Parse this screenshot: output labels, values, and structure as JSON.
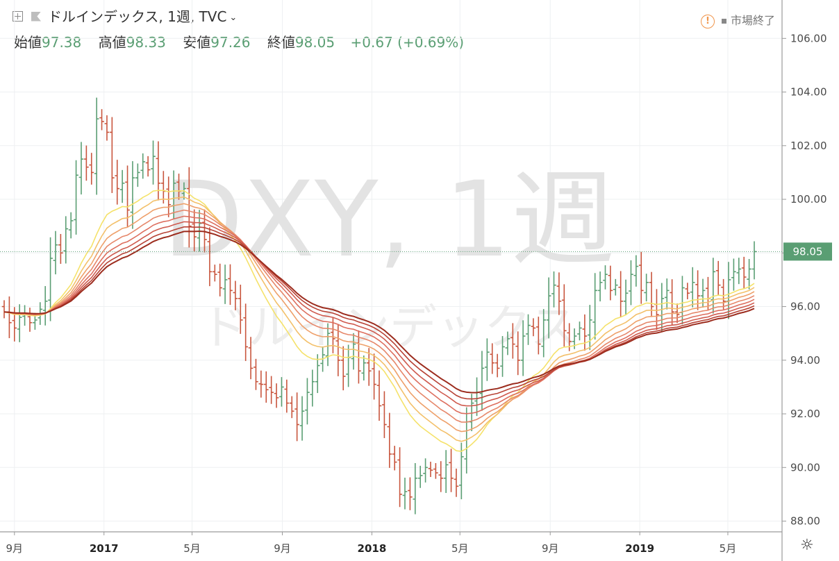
{
  "header": {
    "title": "ドルインデックス, 1週, TVC",
    "status": "市場終了"
  },
  "ohlc": {
    "open_label": "始値",
    "open": "97.38",
    "high_label": "高値",
    "high": "98.33",
    "low_label": "安値",
    "low": "97.26",
    "close_label": "終値",
    "close": "98.05",
    "change": "+0.67 (+0.69%)"
  },
  "watermark": {
    "symbol": "DXY, 1週",
    "name": "ドルインデックス"
  },
  "colors": {
    "up": "#5a9e73",
    "down": "#c8553d",
    "price_line": "#5a9e73",
    "ribbon": [
      "#f5e26a",
      "#f3c06a",
      "#eea06a",
      "#e6876a",
      "#dd6e5e",
      "#cf5a4e",
      "#b74235",
      "#9c2c1e"
    ]
  },
  "chart_data": {
    "type": "ohlc",
    "title": "ドルインデックス, 1週, TVC",
    "x_ticks": [
      "9月",
      "2017",
      "5月",
      "9月",
      "2018",
      "5月",
      "9月",
      "2019",
      "5月"
    ],
    "x_tick_dates": [
      "2016-09-01",
      "2017-01-01",
      "2017-05-01",
      "2017-09-01",
      "2018-01-01",
      "2018-05-01",
      "2018-09-01",
      "2019-01-01",
      "2019-05-01"
    ],
    "y_ticks": [
      "88.00",
      "90.00",
      "92.00",
      "94.00",
      "96.00",
      "98.00",
      "100.00",
      "102.00",
      "104.00",
      "106.00"
    ],
    "ylim": [
      87.6,
      106.5
    ],
    "last_price": "98.05",
    "grid": true,
    "weekly_close": [
      95.8,
      95.4,
      95.2,
      95.6,
      95.7,
      95.4,
      95.5,
      95.9,
      96.2,
      97.8,
      98.3,
      98.0,
      98.9,
      99.2,
      100.9,
      101.5,
      101.2,
      101.0,
      103.0,
      102.9,
      102.5,
      100.8,
      100.4,
      100.6,
      99.6,
      100.8,
      101.0,
      101.4,
      101.1,
      101.6,
      100.6,
      100.3,
      99.8,
      100.6,
      100.3,
      100.4,
      99.0,
      98.6,
      99.1,
      98.5,
      97.3,
      97.2,
      96.7,
      97.0,
      96.6,
      96.3,
      95.5,
      94.5,
      93.7,
      93.2,
      93.1,
      92.9,
      92.8,
      92.6,
      93.0,
      92.4,
      92.1,
      91.6,
      92.1,
      92.8,
      93.2,
      93.8,
      94.2,
      95.0,
      94.8,
      94.0,
      93.4,
      94.1,
      94.6,
      93.6,
      93.9,
      93.6,
      93.1,
      92.3,
      91.6,
      90.5,
      90.2,
      89.0,
      89.1,
      88.9,
      89.6,
      89.7,
      90.0,
      89.9,
      89.8,
      89.6,
      90.1,
      89.6,
      89.3,
      90.4,
      91.7,
      92.4,
      92.8,
      93.7,
      94.3,
      93.9,
      93.7,
      94.5,
      94.8,
      94.6,
      94.0,
      94.9,
      95.3,
      95.2,
      94.6,
      95.5,
      96.4,
      96.8,
      96.2,
      95.1,
      94.7,
      94.9,
      95.2,
      94.9,
      95.5,
      96.6,
      96.9,
      97.2,
      96.6,
      96.8,
      96.2,
      96.5,
      97.2,
      97.5,
      96.6,
      96.9,
      96.0,
      95.7,
      96.3,
      96.6,
      95.8,
      95.7,
      96.7,
      96.5,
      96.9,
      96.4,
      96.6,
      96.3,
      97.3,
      96.8,
      96.2,
      97.0,
      97.3,
      97.4,
      97.1,
      97.4,
      98.05
    ],
    "ema_ribbon_periods": [
      20,
      25,
      30,
      35,
      40,
      45,
      50,
      55
    ]
  }
}
